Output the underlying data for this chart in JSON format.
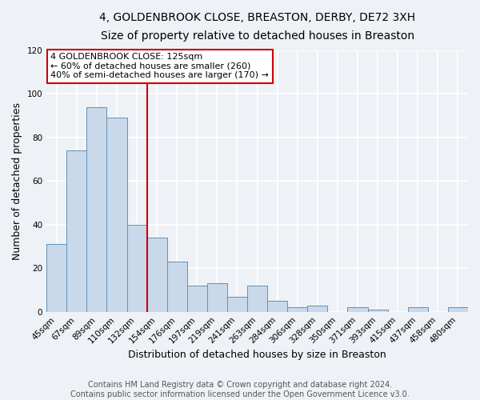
{
  "title": "4, GOLDENBROOK CLOSE, BREASTON, DERBY, DE72 3XH",
  "subtitle": "Size of property relative to detached houses in Breaston",
  "xlabel": "Distribution of detached houses by size in Breaston",
  "ylabel": "Number of detached properties",
  "bar_labels": [
    "45sqm",
    "67sqm",
    "89sqm",
    "110sqm",
    "132sqm",
    "154sqm",
    "176sqm",
    "197sqm",
    "219sqm",
    "241sqm",
    "263sqm",
    "284sqm",
    "306sqm",
    "328sqm",
    "350sqm",
    "371sqm",
    "393sqm",
    "415sqm",
    "437sqm",
    "458sqm",
    "480sqm"
  ],
  "bar_values": [
    31,
    74,
    94,
    89,
    40,
    34,
    23,
    12,
    13,
    7,
    12,
    5,
    2,
    3,
    0,
    2,
    1,
    0,
    2,
    0,
    2
  ],
  "bar_color": "#c9d9ea",
  "bar_edge_color": "#6090b8",
  "background_color": "#eef2f7",
  "grid_color": "#ffffff",
  "ylim": [
    0,
    120
  ],
  "yticks": [
    0,
    20,
    40,
    60,
    80,
    100,
    120
  ],
  "vline_x": 4.5,
  "vline_color": "#cc0000",
  "annotation_title": "4 GOLDENBROOK CLOSE: 125sqm",
  "annotation_line1": "← 60% of detached houses are smaller (260)",
  "annotation_line2": "40% of semi-detached houses are larger (170) →",
  "annotation_box_facecolor": "#ffffff",
  "annotation_box_edgecolor": "#cc0000",
  "footer1": "Contains HM Land Registry data © Crown copyright and database right 2024.",
  "footer2": "Contains public sector information licensed under the Open Government Licence v3.0.",
  "title_fontsize": 10,
  "subtitle_fontsize": 9,
  "axis_label_fontsize": 9,
  "tick_fontsize": 7.5,
  "annotation_fontsize": 8,
  "footer_fontsize": 7
}
